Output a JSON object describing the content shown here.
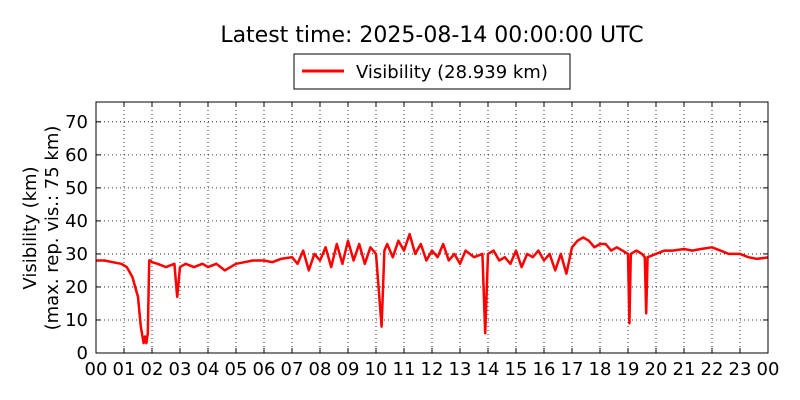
{
  "chart_data": {
    "type": "line",
    "title": "Latest time: 2025-08-14 00:00:00 UTC",
    "ylabel_line1": "Visibility (km)",
    "ylabel_line2": "(max. rep. vis.: 75 km)",
    "xlabel": "",
    "x_ticks": [
      "00",
      "01",
      "02",
      "03",
      "04",
      "05",
      "06",
      "07",
      "08",
      "09",
      "10",
      "11",
      "12",
      "13",
      "14",
      "15",
      "16",
      "17",
      "18",
      "19",
      "20",
      "21",
      "22",
      "23",
      "00"
    ],
    "y_ticks": [
      0,
      10,
      20,
      30,
      40,
      50,
      60,
      70
    ],
    "xlim": [
      0,
      24
    ],
    "ylim": [
      0,
      76
    ],
    "grid": true,
    "legend_placement": "top-center",
    "series": [
      {
        "name": "Visibility (28.939 km)",
        "color": "#ff0000",
        "x": [
          0.0,
          0.3,
          0.6,
          0.9,
          1.1,
          1.3,
          1.5,
          1.6,
          1.7,
          1.75,
          1.8,
          1.85,
          1.9,
          1.95,
          2.0,
          2.2,
          2.5,
          2.8,
          2.9,
          3.0,
          3.2,
          3.5,
          3.8,
          4.0,
          4.3,
          4.6,
          5.0,
          5.3,
          5.6,
          6.0,
          6.3,
          6.6,
          7.0,
          7.2,
          7.4,
          7.6,
          7.8,
          8.0,
          8.2,
          8.4,
          8.6,
          8.8,
          9.0,
          9.2,
          9.4,
          9.6,
          9.8,
          10.0,
          10.2,
          10.3,
          10.4,
          10.6,
          10.8,
          11.0,
          11.2,
          11.4,
          11.6,
          11.8,
          12.0,
          12.2,
          12.4,
          12.6,
          12.8,
          13.0,
          13.2,
          13.5,
          13.8,
          13.9,
          14.0,
          14.2,
          14.4,
          14.6,
          14.8,
          15.0,
          15.2,
          15.4,
          15.6,
          15.8,
          16.0,
          16.2,
          16.4,
          16.6,
          16.8,
          17.0,
          17.2,
          17.4,
          17.6,
          17.8,
          18.0,
          18.2,
          18.4,
          18.6,
          18.8,
          19.0,
          19.05,
          19.1,
          19.3,
          19.5,
          19.6,
          19.65,
          19.7,
          20.0,
          20.3,
          20.6,
          21.0,
          21.3,
          21.6,
          22.0,
          22.3,
          22.6,
          23.0,
          23.3,
          23.6,
          24.0
        ],
        "values": [
          28,
          28,
          27.5,
          27,
          26,
          23,
          17,
          8,
          3,
          5,
          3,
          6,
          28,
          28,
          27.5,
          27,
          26,
          27,
          17,
          26,
          27,
          26,
          27,
          26,
          27,
          25,
          27,
          27.5,
          28,
          28,
          27.5,
          28.5,
          29,
          27,
          31,
          25,
          30,
          28,
          32,
          26,
          33,
          27,
          34,
          28,
          33,
          27,
          32,
          30,
          8,
          31,
          33,
          29,
          34,
          31,
          36,
          30,
          33,
          28,
          31,
          29,
          33,
          28,
          30,
          27,
          31,
          29,
          30,
          6,
          30,
          31,
          28,
          29,
          27,
          31,
          26,
          30,
          29,
          31,
          28,
          30,
          25,
          30,
          24,
          32,
          34,
          35,
          34,
          32,
          33,
          33,
          31,
          32,
          31,
          30,
          9,
          30,
          31,
          30,
          29,
          12,
          29,
          30,
          31,
          31,
          31.5,
          31,
          31.5,
          32,
          31,
          30,
          30,
          29,
          28.5,
          28.939
        ]
      }
    ]
  }
}
